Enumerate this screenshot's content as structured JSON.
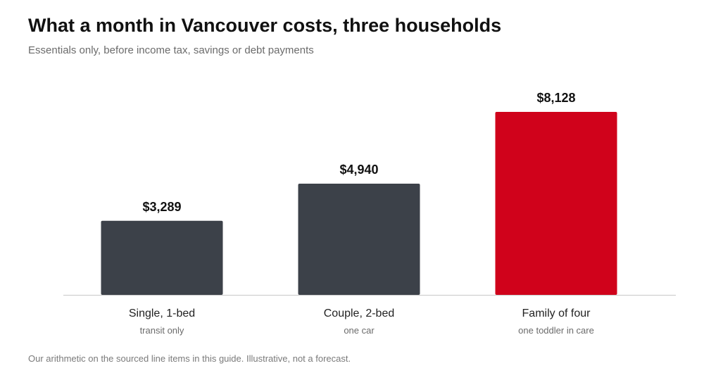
{
  "title": "What a month in Vancouver costs, three households",
  "subtitle": "Essentials only, before income tax, savings or debt payments",
  "footnote": "Our arithmetic on the sourced line items in this guide. Illustrative, not a forecast.",
  "colors": {
    "default_bar": "#3c4149",
    "highlight_bar": "#d0021b",
    "baseline": "#c8c8c8"
  },
  "chart_data": {
    "type": "bar",
    "title": "What a month in Vancouver costs, three households",
    "subtitle": "Essentials only, before income tax, savings or debt payments",
    "xlabel": "",
    "ylabel": "",
    "grid": false,
    "categories": [
      "Single, 1-bed",
      "Couple, 2-bed",
      "Family of four"
    ],
    "sublabels": [
      "transit only",
      "one car",
      "one toddler in care"
    ],
    "values": [
      3289,
      4940,
      8128
    ],
    "value_labels": [
      "$3,289",
      "$4,940",
      "$8,128"
    ],
    "highlight": [
      false,
      false,
      true
    ],
    "ylim": [
      0,
      8128
    ]
  }
}
